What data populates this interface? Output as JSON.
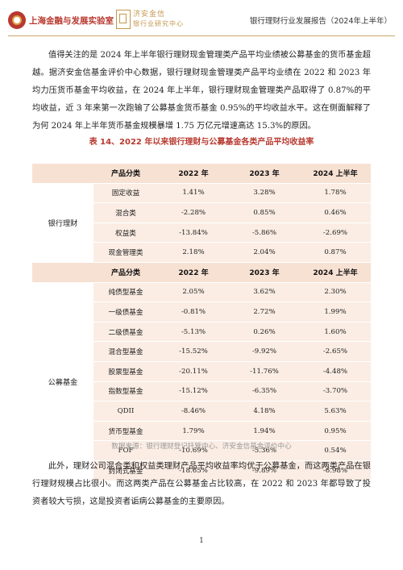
{
  "header": {
    "logo1_text": "上海金融与发展实验室",
    "logo2_line1": "济安金信",
    "logo2_line2": "银行业研究中心",
    "report_title": "银行理财行业发展报告（2024年上半年）"
  },
  "paragraphs": [
    "值得关注的是 2024 年上半年银行理财现金管理类产品平均业绩被公募基金的货币基金超越。据济安金信基金评价中心数据，银行理财现金管理类产品平均业绩在 2022 和 2023 年均力压货币基金平均收益，在 2024 年上半年，银行理财现金管理类产品取得了 0.87%的平均收益，近 3 年来第一次跑输了公募基金货币基金 0.95%的平均收益水平。这在侧面解释了为何 2024 年上半年货币基金规模暴增 1.75 万亿元增速高达 15.3%的原因。",
    "此外，理财公司混合类和权益类理财产品平均收益率均优于公募基金，而这两类产品在银行理财规模占比很小。而这两类产品在公募基金占比较高，在 2022 和 2023 年都导致了投资者较大亏损，这是投资者诟病公募基金的主要原因。"
  ],
  "table": {
    "title": "表 14、2022 年以来银行理财与公募基金各类产品平均收益率",
    "headers": [
      "产品分类",
      "2022 年",
      "2023 年",
      "2024 上半年"
    ],
    "groups": [
      {
        "name": "银行理财",
        "rows": [
          {
            "name": "固定收益",
            "v2022": "1.41%",
            "v2023": "3.28%",
            "v2024": "1.78%"
          },
          {
            "name": "混合类",
            "v2022": "-2.28%",
            "v2023": "0.85%",
            "v2024": "0.46%"
          },
          {
            "name": "权益类",
            "v2022": "-13.84%",
            "v2023": "-5.86%",
            "v2024": "-2.69%"
          },
          {
            "name": "现金管理类",
            "v2022": "2.18%",
            "v2023": "2.04%",
            "v2024": "0.87%"
          }
        ]
      },
      {
        "name": "公募基金",
        "rows": [
          {
            "name": "纯债型基金",
            "v2022": "2.05%",
            "v2023": "3.62%",
            "v2024": "2.30%"
          },
          {
            "name": "一级债基金",
            "v2022": "-0.81%",
            "v2023": "2.72%",
            "v2024": "1.99%"
          },
          {
            "name": "二级债基金",
            "v2022": "-5.13%",
            "v2023": "0.26%",
            "v2024": "1.60%"
          },
          {
            "name": "混合型基金",
            "v2022": "-15.52%",
            "v2023": "-9.92%",
            "v2024": "-2.65%"
          },
          {
            "name": "股票型基金",
            "v2022": "-20.11%",
            "v2023": "-11.76%",
            "v2024": "-4.48%"
          },
          {
            "name": "指数型基金",
            "v2022": "-15.12%",
            "v2023": "-6.35%",
            "v2024": "-3.70%"
          },
          {
            "name": "QDII",
            "v2022": "-8.46%",
            "v2023": "4.18%",
            "v2024": "5.63%"
          },
          {
            "name": "货币型基金",
            "v2022": "1.79%",
            "v2023": "1.94%",
            "v2024": "0.95%"
          },
          {
            "name": "FOF",
            "v2022": "-10.69%",
            "v2023": "-5.36%",
            "v2024": "0.54%"
          },
          {
            "name": "封闭式基金",
            "v2022": "-18.65%",
            "v2023": "-9.89%",
            "v2024": "-6.98%"
          }
        ]
      }
    ],
    "source": "数据来源：银行理财登记托管中心、济安金信基金评价中心"
  },
  "page_number": "1",
  "colors": {
    "accent_red": "#b8392f",
    "header_rule": "#c9a36b",
    "table_header_bg": "#f7e1d3",
    "table_cell_bg": "#fbede4"
  }
}
